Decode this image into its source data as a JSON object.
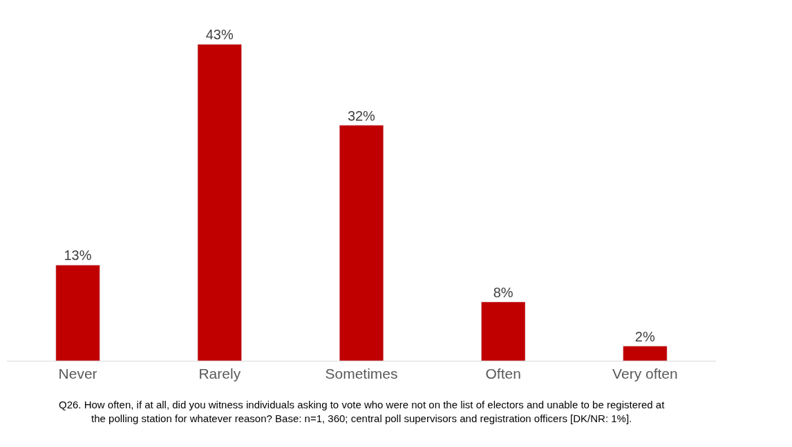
{
  "chart_data": {
    "type": "bar",
    "categories": [
      "Never",
      "Rarely",
      "Sometimes",
      "Often",
      "Very often"
    ],
    "values": [
      13,
      43,
      32,
      8,
      2
    ],
    "color": "#c00000",
    "data_labels": true,
    "value_labels": [
      "13%",
      "43%",
      "32%",
      "8%",
      "2%"
    ],
    "legend": false,
    "annotations": [
      "Q26. How often, if at all, did you witness individuals asking to vote who were not on the list of electors and unable to be registered at the polling station for whatever reason? Base: n=1, 360; central poll supervisors and registration officers [DK/NR: 1%]."
    ]
  }
}
